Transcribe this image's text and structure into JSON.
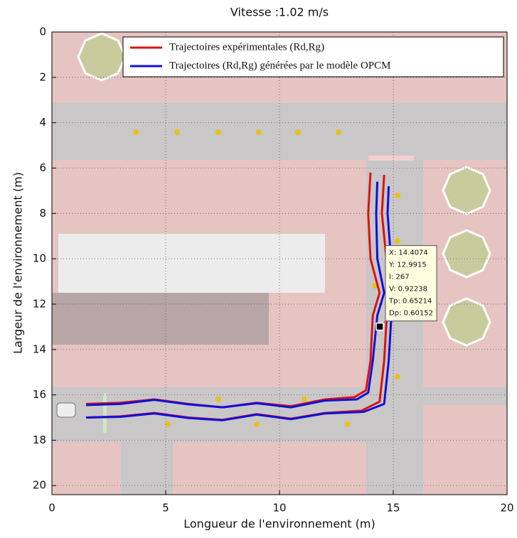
{
  "chart_data": {
    "type": "line",
    "title": "Vitesse :1.02 m/s",
    "x_label": "Longueur de l'environnement (m)",
    "y_label": "Largeur de l'environnement (m)",
    "xlim": [
      0,
      20
    ],
    "ylim": [
      20.4,
      0
    ],
    "xticks": [
      0,
      5,
      10,
      15,
      20
    ],
    "yticks": [
      0,
      2,
      4,
      6,
      8,
      10,
      12,
      14,
      16,
      18,
      20
    ],
    "grid": true,
    "legend": "top-right",
    "series": [
      {
        "name": "Trajectoires expérimentales (Rd,Rg)",
        "color": "#e01010",
        "lines": [
          {
            "x": [
              1.5,
              3,
              4.5,
              6,
              7.5,
              9,
              10.5,
              12,
              13.3,
              13.8,
              14.0,
              14.1,
              14.4,
              14.0,
              13.9,
              14.0
            ],
            "y": [
              16.4,
              16.35,
              16.2,
              16.4,
              16.55,
              16.35,
              16.5,
              16.2,
              16.1,
              15.8,
              14.5,
              12.5,
              11.5,
              10,
              8,
              6.2
            ]
          },
          {
            "x": [
              1.5,
              3,
              4.5,
              6,
              7.5,
              9,
              10.5,
              12,
              13.6,
              14.4,
              14.6,
              14.7,
              15.0,
              14.7,
              14.5,
              14.6
            ],
            "y": [
              17.0,
              16.95,
              16.8,
              17.0,
              17.1,
              16.85,
              17.05,
              16.8,
              16.7,
              16.3,
              14.5,
              12.8,
              11.5,
              10,
              8,
              6.3
            ]
          }
        ]
      },
      {
        "name": "Trajectoires (Rd,Rg) générées par le modèle OPCM",
        "color": "#1010d8",
        "lines": [
          {
            "x": [
              1.5,
              3,
              4.5,
              6,
              7.5,
              9,
              10.5,
              12,
              13.4,
              13.9,
              14.1,
              14.3,
              14.6,
              14.3,
              14.25,
              14.3
            ],
            "y": [
              16.45,
              16.4,
              16.22,
              16.42,
              16.55,
              16.37,
              16.55,
              16.25,
              16.2,
              15.9,
              14.5,
              12.5,
              11.5,
              10,
              8,
              6.6
            ]
          },
          {
            "x": [
              1.5,
              3,
              4.5,
              6,
              7.5,
              9,
              10.5,
              12,
              13.7,
              14.6,
              14.8,
              14.9,
              15.2,
              14.9,
              14.75,
              14.8
            ],
            "y": [
              17.0,
              16.97,
              16.82,
              17.02,
              17.12,
              16.87,
              17.07,
              16.82,
              16.75,
              16.4,
              14.5,
              12.8,
              11.5,
              10,
              8,
              6.8
            ]
          }
        ]
      }
    ],
    "datatip": {
      "x": 14.4074,
      "y": 12.9915,
      "lines": [
        "X: 14.4074",
        "Y: 12.9915",
        "I: 267",
        "V: 0.92238",
        "Tp: 0.65214",
        "Dp: 0.60152"
      ]
    }
  }
}
